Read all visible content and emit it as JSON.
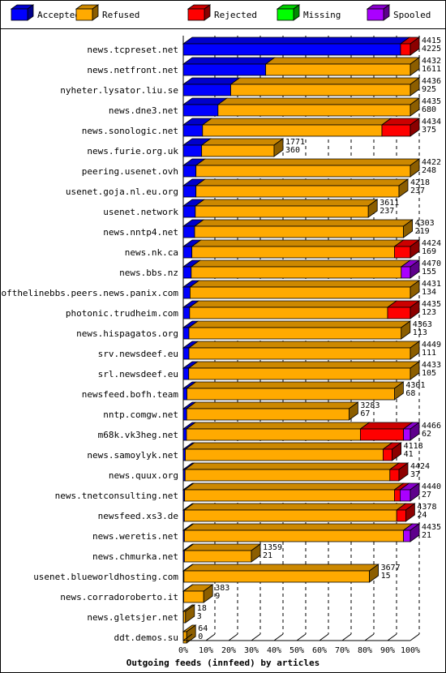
{
  "chart_data": {
    "type": "bar",
    "orientation": "horizontal",
    "stacked": true,
    "title": "Outgoing feeds (innfeed) by articles",
    "x_ticks": [
      "0%",
      "10%",
      "20%",
      "30%",
      "40%",
      "50%",
      "60%",
      "70%",
      "80%",
      "90%",
      "100%"
    ],
    "xlim": [
      0,
      100
    ],
    "legend": [
      {
        "name": "Accepted",
        "color": "#0000ff"
      },
      {
        "name": "Refused",
        "color": "#ffaa00"
      },
      {
        "name": "Rejected",
        "color": "#ff0000"
      },
      {
        "name": "Missing",
        "color": "#00ff00"
      },
      {
        "name": "Spooled",
        "color": "#aa00ff"
      }
    ],
    "grid": true,
    "rows": [
      {
        "name": "news.tcpreset.net",
        "offered": "4415",
        "accepted": "4225",
        "segments": [
          {
            "s": 0,
            "v": 95.7
          },
          {
            "s": 2,
            "v": 4.3
          }
        ]
      },
      {
        "name": "news.netfront.net",
        "offered": "4432",
        "accepted": "1611",
        "segments": [
          {
            "s": 0,
            "v": 36.3
          },
          {
            "s": 1,
            "v": 63.7
          }
        ]
      },
      {
        "name": "nyheter.lysator.liu.se",
        "offered": "4436",
        "accepted": "925",
        "segments": [
          {
            "s": 0,
            "v": 20.9
          },
          {
            "s": 1,
            "v": 79.1
          }
        ]
      },
      {
        "name": "news.dne3.net",
        "offered": "4435",
        "accepted": "680",
        "segments": [
          {
            "s": 0,
            "v": 15.3
          },
          {
            "s": 1,
            "v": 84.7
          }
        ]
      },
      {
        "name": "news.sonologic.net",
        "offered": "4434",
        "accepted": "375",
        "segments": [
          {
            "s": 0,
            "v": 8.5
          },
          {
            "s": 1,
            "v": 79
          },
          {
            "s": 2,
            "v": 12.5
          }
        ]
      },
      {
        "name": "news.furie.org.uk",
        "offered": "1771",
        "accepted": "360",
        "segments": [
          {
            "s": 0,
            "v": 8.1
          },
          {
            "s": 1,
            "v": 31.9
          }
        ]
      },
      {
        "name": "peering.usenet.ovh",
        "offered": "4422",
        "accepted": "248",
        "segments": [
          {
            "s": 0,
            "v": 5.6
          },
          {
            "s": 1,
            "v": 94.4
          }
        ]
      },
      {
        "name": "usenet.goja.nl.eu.org",
        "offered": "4218",
        "accepted": "237",
        "segments": [
          {
            "s": 0,
            "v": 5.6
          },
          {
            "s": 1,
            "v": 89.4
          }
        ]
      },
      {
        "name": "usenet.network",
        "offered": "3611",
        "accepted": "237",
        "segments": [
          {
            "s": 0,
            "v": 5.3
          },
          {
            "s": 1,
            "v": 76.2
          }
        ]
      },
      {
        "name": "news.nntp4.net",
        "offered": "4303",
        "accepted": "219",
        "segments": [
          {
            "s": 0,
            "v": 5
          },
          {
            "s": 1,
            "v": 92
          }
        ]
      },
      {
        "name": "news.nk.ca",
        "offered": "4424",
        "accepted": "169",
        "segments": [
          {
            "s": 0,
            "v": 3.8
          },
          {
            "s": 1,
            "v": 89.2
          },
          {
            "s": 2,
            "v": 7
          }
        ]
      },
      {
        "name": "news.bbs.nz",
        "offered": "4470",
        "accepted": "155",
        "segments": [
          {
            "s": 0,
            "v": 3.5
          },
          {
            "s": 1,
            "v": 92.5
          },
          {
            "s": 4,
            "v": 4
          }
        ]
      },
      {
        "name": "endofthelinebbs.peers.news.panix.com",
        "offered": "4431",
        "accepted": "134",
        "segments": [
          {
            "s": 0,
            "v": 3
          },
          {
            "s": 1,
            "v": 97
          }
        ]
      },
      {
        "name": "photonic.trudheim.com",
        "offered": "4435",
        "accepted": "123",
        "segments": [
          {
            "s": 0,
            "v": 2.8
          },
          {
            "s": 1,
            "v": 87.2
          },
          {
            "s": 2,
            "v": 10
          }
        ]
      },
      {
        "name": "news.hispagatos.org",
        "offered": "4363",
        "accepted": "113",
        "segments": [
          {
            "s": 0,
            "v": 2.5
          },
          {
            "s": 1,
            "v": 93.5
          }
        ]
      },
      {
        "name": "srv.newsdeef.eu",
        "offered": "4449",
        "accepted": "111",
        "segments": [
          {
            "s": 0,
            "v": 2.5
          },
          {
            "s": 1,
            "v": 97.5
          }
        ]
      },
      {
        "name": "srl.newsdeef.eu",
        "offered": "4433",
        "accepted": "105",
        "segments": [
          {
            "s": 0,
            "v": 2.4
          },
          {
            "s": 1,
            "v": 97.6
          }
        ]
      },
      {
        "name": "newsfeed.bofh.team",
        "offered": "4301",
        "accepted": "68",
        "segments": [
          {
            "s": 0,
            "v": 1.6
          },
          {
            "s": 1,
            "v": 91.4
          }
        ]
      },
      {
        "name": "nntp.comgw.net",
        "offered": "3283",
        "accepted": "67",
        "segments": [
          {
            "s": 0,
            "v": 1.5
          },
          {
            "s": 1,
            "v": 71.5
          }
        ]
      },
      {
        "name": "m68k.vk3heg.net",
        "offered": "4466",
        "accepted": "62",
        "segments": [
          {
            "s": 0,
            "v": 1.4
          },
          {
            "s": 1,
            "v": 76.6
          },
          {
            "s": 2,
            "v": 19
          },
          {
            "s": 4,
            "v": 3
          }
        ]
      },
      {
        "name": "news.samoylyk.net",
        "offered": "4118",
        "accepted": "41",
        "segments": [
          {
            "s": 0,
            "v": 0.9
          },
          {
            "s": 1,
            "v": 87.1
          },
          {
            "s": 2,
            "v": 4
          }
        ]
      },
      {
        "name": "news.quux.org",
        "offered": "4424",
        "accepted": "37",
        "segments": [
          {
            "s": 0,
            "v": 0.8
          },
          {
            "s": 1,
            "v": 90.2
          },
          {
            "s": 2,
            "v": 4
          }
        ]
      },
      {
        "name": "news.tnetconsulting.net",
        "offered": "4440",
        "accepted": "27",
        "segments": [
          {
            "s": 0,
            "v": 0.6
          },
          {
            "s": 1,
            "v": 92.4
          },
          {
            "s": 2,
            "v": 2.5
          },
          {
            "s": 4,
            "v": 4.5
          }
        ]
      },
      {
        "name": "newsfeed.xs3.de",
        "offered": "4378",
        "accepted": "24",
        "segments": [
          {
            "s": 0,
            "v": 0.5
          },
          {
            "s": 1,
            "v": 93.5
          },
          {
            "s": 2,
            "v": 4
          }
        ]
      },
      {
        "name": "news.weretis.net",
        "offered": "4435",
        "accepted": "21",
        "segments": [
          {
            "s": 0,
            "v": 0.5
          },
          {
            "s": 1,
            "v": 96.5
          },
          {
            "s": 4,
            "v": 3
          }
        ]
      },
      {
        "name": "news.chmurka.net",
        "offered": "1359",
        "accepted": "21",
        "segments": [
          {
            "s": 0,
            "v": 0.5
          },
          {
            "s": 1,
            "v": 29.5
          }
        ]
      },
      {
        "name": "usenet.blueworldhosting.com",
        "offered": "3677",
        "accepted": "15",
        "segments": [
          {
            "s": 0,
            "v": 0.3
          },
          {
            "s": 1,
            "v": 81.7
          }
        ]
      },
      {
        "name": "news.corradoroberto.it",
        "offered": "383",
        "accepted": "9",
        "segments": [
          {
            "s": 0,
            "v": 0.2
          },
          {
            "s": 1,
            "v": 8.8
          }
        ]
      },
      {
        "name": "news.gletsjer.net",
        "offered": "18",
        "accepted": "3",
        "segments": [
          {
            "s": 0,
            "v": 0.1
          },
          {
            "s": 1,
            "v": 0.9
          }
        ]
      },
      {
        "name": "ddt.demos.su",
        "offered": "64",
        "accepted": "0",
        "segments": [
          {
            "s": 1,
            "v": 1.5
          }
        ]
      }
    ]
  }
}
